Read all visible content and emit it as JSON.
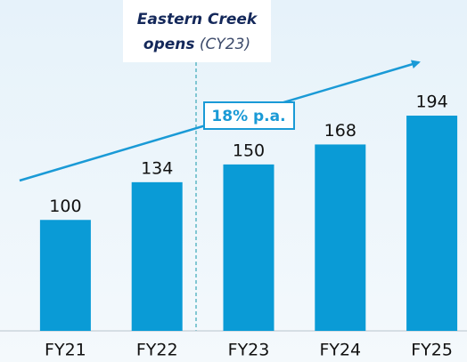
{
  "chart_data": {
    "type": "bar",
    "categories": [
      "FY21",
      "FY22",
      "FY23",
      "FY24",
      "FY25"
    ],
    "values": [
      100,
      134,
      150,
      168,
      194
    ],
    "color": "#0a9bd6",
    "annotation": {
      "line1": "Eastern Creek",
      "line2_bold": "opens",
      "line2_rest": "(CY23)"
    },
    "growth_label": "18% p.a."
  }
}
